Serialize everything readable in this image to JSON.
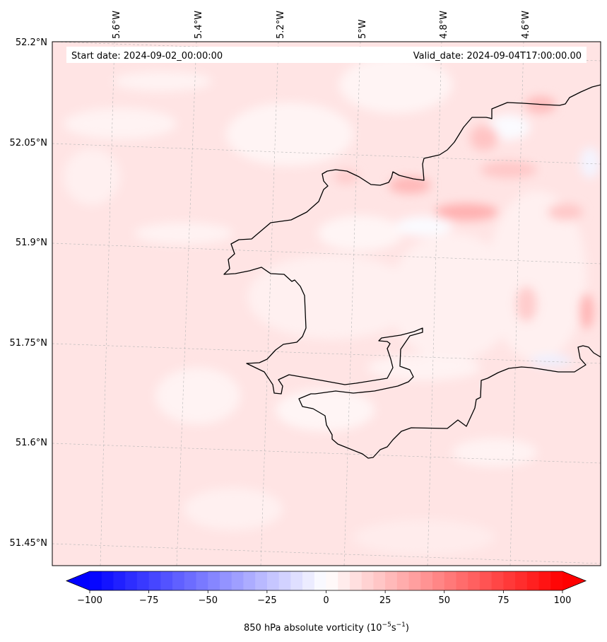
{
  "map": {
    "start_label": "Start date: 2024-09-02_00:00:00",
    "valid_label": "Valid_date: 2024-09-04T17:00:00.00",
    "lon_labels": [
      "5.6°W",
      "5.4°W",
      "5.2°W",
      "5°W",
      "4.8°W",
      "4.6°W"
    ],
    "lat_labels": [
      "52.2°N",
      "52.05°N",
      "51.9°N",
      "51.75°N",
      "51.6°N",
      "51.45°N"
    ],
    "background_color": "#ffe4e4",
    "coastline_color": "#000000"
  },
  "colorbar": {
    "min": -100,
    "max": 100,
    "step": 5,
    "extend": "both",
    "ticks": [
      "−100",
      "−75",
      "−50",
      "−25",
      "0",
      "25",
      "50",
      "75",
      "100"
    ],
    "label_text": "850 hPa absolute vorticity (10",
    "label_exp1": "−5",
    "label_mid": "s",
    "label_exp2": "−1",
    "label_end": ")",
    "low_color": "#0000ff",
    "mid_color": "#ffffff",
    "high_color": "#ff0000"
  }
}
